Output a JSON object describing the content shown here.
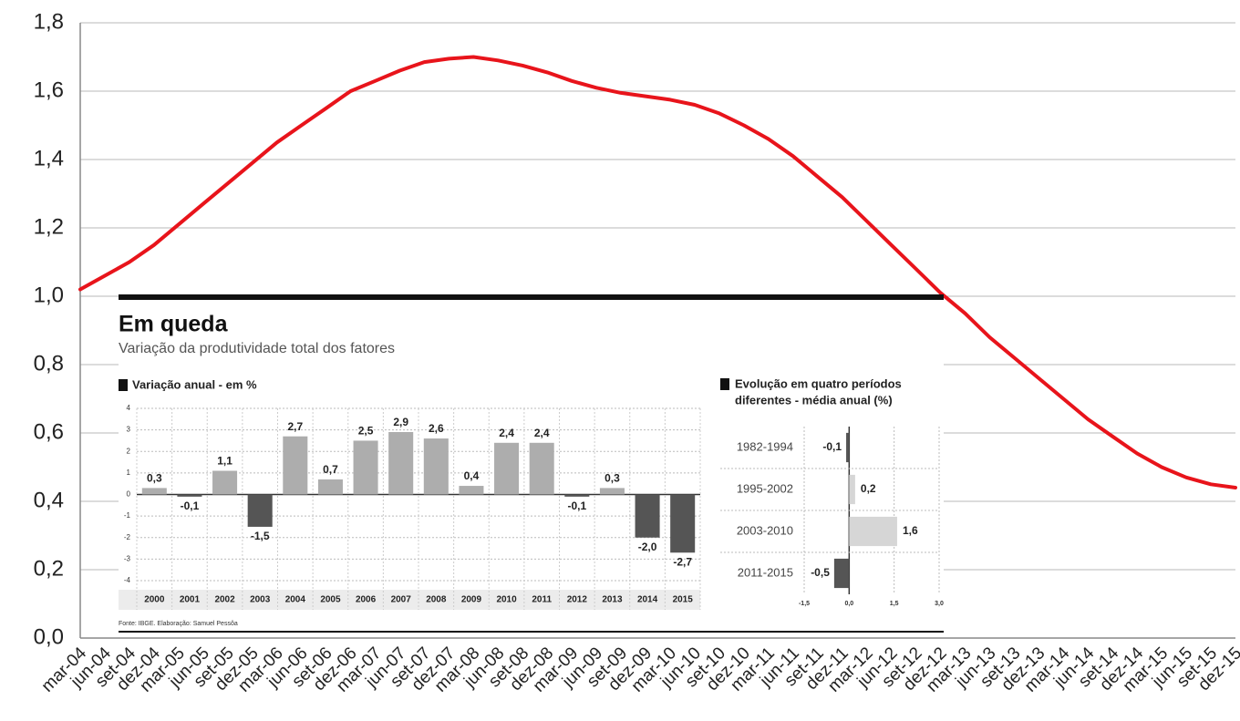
{
  "chart_data": [
    {
      "type": "line",
      "categories": [
        "mar-04",
        "jun-04",
        "set-04",
        "dez-04",
        "mar-05",
        "jun-05",
        "set-05",
        "dez-05",
        "mar-06",
        "jun-06",
        "set-06",
        "dez-06",
        "mar-07",
        "jun-07",
        "set-07",
        "dez-07",
        "mar-08",
        "jun-08",
        "set-08",
        "dez-08",
        "mar-09",
        "jun-09",
        "set-09",
        "dez-09",
        "mar-10",
        "jun-10",
        "set-10",
        "dez-10",
        "mar-11",
        "jun-11",
        "set-11",
        "dez-11",
        "mar-12",
        "jun-12",
        "set-12",
        "dez-12",
        "mar-13",
        "jun-13",
        "set-13",
        "dez-13",
        "mar-14",
        "jun-14",
        "set-14",
        "dez-14",
        "mar-15",
        "jun-15",
        "set-15",
        "dez-15"
      ],
      "values": [
        1.02,
        1.06,
        1.1,
        1.15,
        1.21,
        1.27,
        1.33,
        1.39,
        1.45,
        1.5,
        1.55,
        1.6,
        1.63,
        1.66,
        1.685,
        1.695,
        1.7,
        1.69,
        1.675,
        1.655,
        1.63,
        1.61,
        1.595,
        1.585,
        1.575,
        1.56,
        1.535,
        1.5,
        1.46,
        1.41,
        1.35,
        1.29,
        1.22,
        1.15,
        1.08,
        1.01,
        0.95,
        0.88,
        0.82,
        0.76,
        0.7,
        0.64,
        0.59,
        0.54,
        0.5,
        0.47,
        0.45,
        0.44
      ],
      "color": "#e8141b",
      "ylim": [
        0,
        1.8
      ],
      "yticks": [
        {
          "value": 0,
          "label": "0,0"
        },
        {
          "value": 0.2,
          "label": "0,2"
        },
        {
          "value": 0.4,
          "label": "0,4"
        },
        {
          "value": 0.6,
          "label": "0,6"
        },
        {
          "value": 0.8,
          "label": "0,8"
        },
        {
          "value": 1,
          "label": "1,0"
        },
        {
          "value": 1.2,
          "label": "1,2"
        },
        {
          "value": 1.4,
          "label": "1,4"
        },
        {
          "value": 1.6,
          "label": "1,6"
        },
        {
          "value": 1.8,
          "label": "1,8"
        }
      ],
      "grid": true
    },
    {
      "type": "bar",
      "title": "Em queda",
      "subtitle": "Variação da produtividade total dos fatores",
      "label": "Variação anual - em %",
      "categories": [
        "2000",
        "2001",
        "2002",
        "2003",
        "2004",
        "2005",
        "2006",
        "2007",
        "2008",
        "2009",
        "2010",
        "2011",
        "2012",
        "2013",
        "2014",
        "2015"
      ],
      "values": [
        0.3,
        -0.1,
        1.1,
        -1.5,
        2.7,
        0.7,
        2.5,
        2.9,
        2.6,
        0.4,
        2.4,
        2.4,
        -0.1,
        0.3,
        -2.0,
        -2.7
      ],
      "value_labels": [
        "0,3",
        "-0,1",
        "1,1",
        "-1,5",
        "2,7",
        "0,7",
        "2,5",
        "2,9",
        "2,6",
        "0,4",
        "2,4",
        "2,4",
        "-0,1",
        "0,3",
        "-2,0",
        "-2,7"
      ],
      "color": "#adadad",
      "negative_color": "#555555",
      "ylim": [
        -4,
        4
      ],
      "yticks": [
        4,
        3,
        2,
        1,
        0,
        -1,
        -2,
        -3,
        -4
      ],
      "grid": true,
      "source": "Fonte: IBGE. Elaboração: Samuel Pessôa"
    },
    {
      "type": "hbar",
      "title_lines": [
        "Evolução em quatro períodos",
        "diferentes - média anual (%)"
      ],
      "categories": [
        "1982-1994",
        "1995-2002",
        "2003-2010",
        "2011-2015"
      ],
      "values": [
        -0.1,
        0.2,
        1.6,
        -0.5
      ],
      "value_labels": [
        "-0,1",
        "0,2",
        "1,6",
        "-0,5"
      ],
      "colors": [
        "#555555",
        "#d6d6d6",
        "#d6d6d6",
        "#555555"
      ],
      "xlim": [
        -1.5,
        3.0
      ],
      "xticks": [
        {
          "value": -1.5,
          "label": "-1,5"
        },
        {
          "value": 0,
          "label": "0,0"
        },
        {
          "value": 1.5,
          "label": "1,5"
        },
        {
          "value": 3.0,
          "label": "3,0"
        }
      ],
      "grid": true
    }
  ]
}
